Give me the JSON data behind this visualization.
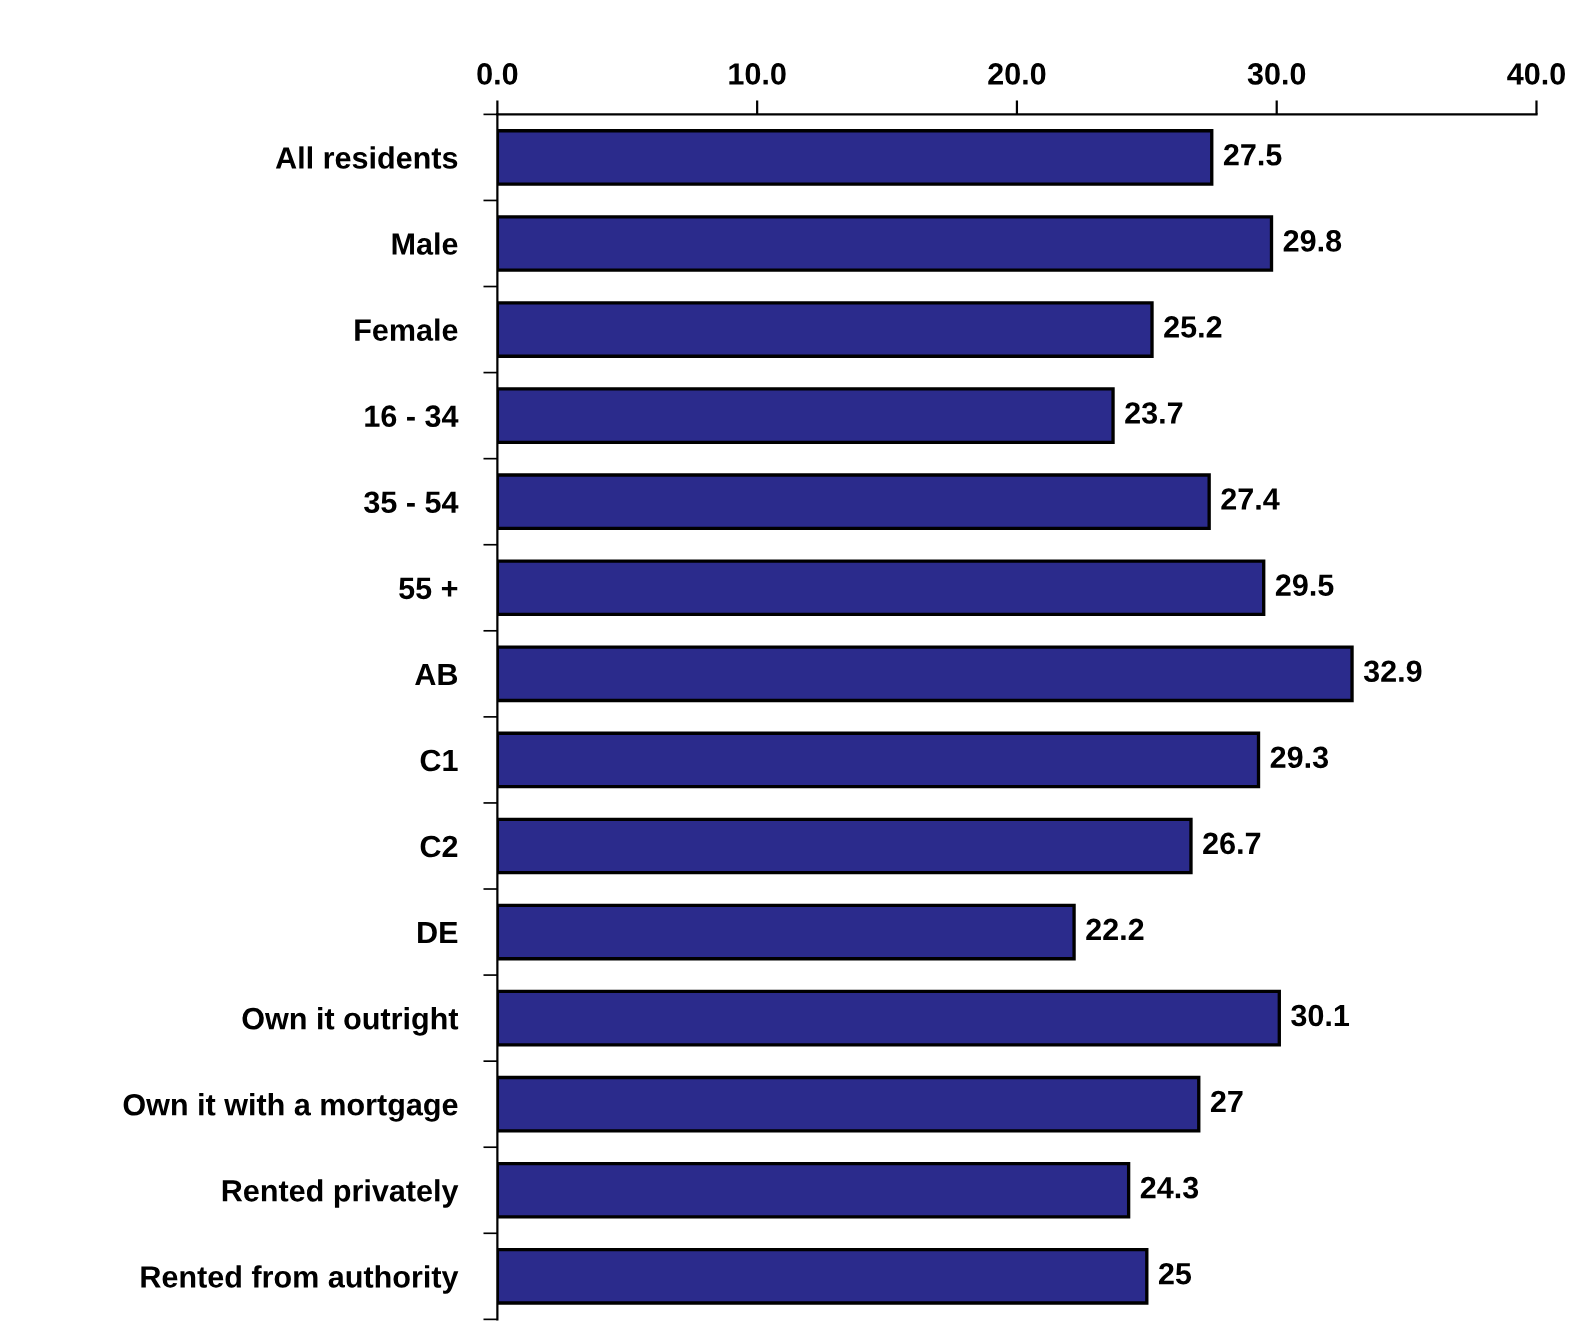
{
  "chart_data": {
    "type": "bar",
    "orientation": "horizontal",
    "categories": [
      "All residents",
      "Male",
      "Female",
      "16 - 34",
      "35 - 54",
      "55 +",
      "AB",
      "C1",
      "C2",
      "DE",
      "Own it outright",
      "Own it with a mortgage",
      "Rented privately",
      "Rented from authority"
    ],
    "values": [
      27.5,
      29.8,
      25.2,
      23.7,
      27.4,
      29.5,
      32.9,
      29.3,
      26.7,
      22.2,
      30.1,
      27,
      24.3,
      25
    ],
    "color": "#2b2b8c",
    "xlim": [
      0,
      40
    ],
    "xticks": [
      {
        "value": 0,
        "label": "0.0"
      },
      {
        "value": 10,
        "label": "10.0"
      },
      {
        "value": 20,
        "label": "20.0"
      },
      {
        "value": 30,
        "label": "30.0"
      },
      {
        "value": 40,
        "label": "40.0"
      }
    ],
    "data_labels": true,
    "grid": false,
    "legend": false
  }
}
